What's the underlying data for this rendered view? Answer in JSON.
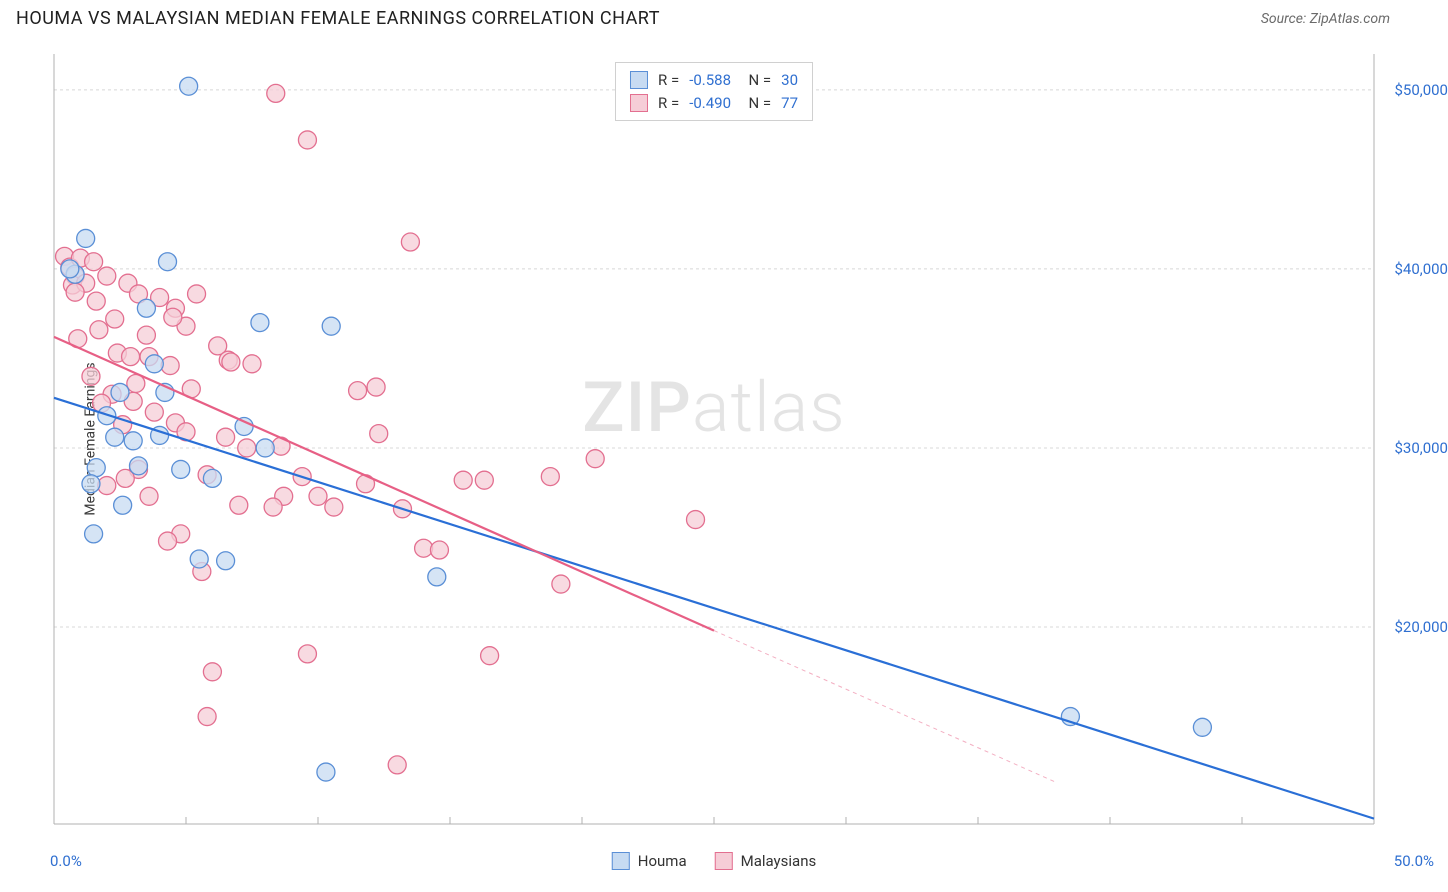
{
  "header": {
    "title": "HOUMA VS MALAYSIAN MEDIAN FEMALE EARNINGS CORRELATION CHART",
    "source": "Source: ZipAtlas.com"
  },
  "chart": {
    "type": "scatter",
    "y_axis_label": "Median Female Earnings",
    "xlim": [
      0,
      50
    ],
    "ylim": [
      9000,
      52000
    ],
    "x_ticks_count": 11,
    "x_tick_labels": {
      "0": "0.0%",
      "50": "50.0%"
    },
    "y_ticks": [
      20000,
      30000,
      40000,
      50000
    ],
    "y_tick_labels": [
      "$20,000",
      "$30,000",
      "$40,000",
      "$50,000"
    ],
    "grid_color": "#d8d8d8",
    "grid_dash": "3,3",
    "axis_color": "#b0b0b0",
    "background_color": "#ffffff",
    "watermark": "ZIPatlas",
    "series": [
      {
        "name": "Houma",
        "marker_fill": "#c7dbf2",
        "marker_stroke": "#5a8fd6",
        "marker_radius": 9,
        "line_color": "#2a6fd6",
        "line_width": 2.2,
        "R": "-0.588",
        "N": "30",
        "trend": {
          "x1": 0,
          "y1": 32800,
          "x2": 50,
          "y2": 9300
        },
        "trend_dash_after_x": 50,
        "points": [
          [
            0.8,
            39700
          ],
          [
            0.6,
            40000
          ],
          [
            1.2,
            41700
          ],
          [
            4.3,
            40400
          ],
          [
            5.1,
            50200
          ],
          [
            2.0,
            31800
          ],
          [
            3.5,
            37800
          ],
          [
            7.8,
            37000
          ],
          [
            2.5,
            33100
          ],
          [
            1.6,
            28900
          ],
          [
            1.4,
            28000
          ],
          [
            3.0,
            30400
          ],
          [
            4.0,
            30700
          ],
          [
            3.2,
            29000
          ],
          [
            4.8,
            28800
          ],
          [
            1.5,
            25200
          ],
          [
            2.6,
            26800
          ],
          [
            5.5,
            23800
          ],
          [
            6.5,
            23700
          ],
          [
            8.0,
            30000
          ],
          [
            7.2,
            31200
          ],
          [
            6.0,
            28300
          ],
          [
            10.5,
            36800
          ],
          [
            14.5,
            22800
          ],
          [
            10.3,
            11900
          ],
          [
            38.5,
            15000
          ],
          [
            43.5,
            14400
          ],
          [
            4.2,
            33100
          ],
          [
            3.8,
            34700
          ],
          [
            2.3,
            30600
          ]
        ]
      },
      {
        "name": "Malaysians",
        "marker_fill": "#f6cdd7",
        "marker_stroke": "#e36f90",
        "marker_radius": 9,
        "line_color": "#e75f85",
        "line_width": 2.2,
        "R": "-0.490",
        "N": "77",
        "trend": {
          "x1": 0,
          "y1": 36200,
          "x2": 25,
          "y2": 19800
        },
        "trend_dash_after_x": 25,
        "trend_dash_end": {
          "x2": 38,
          "y2": 11300
        },
        "points": [
          [
            0.4,
            40700
          ],
          [
            0.6,
            40100
          ],
          [
            0.8,
            39600
          ],
          [
            0.7,
            39100
          ],
          [
            1.0,
            40600
          ],
          [
            1.5,
            40400
          ],
          [
            1.2,
            39200
          ],
          [
            0.8,
            38700
          ],
          [
            1.6,
            38200
          ],
          [
            2.0,
            39600
          ],
          [
            2.8,
            39200
          ],
          [
            3.2,
            38600
          ],
          [
            4.0,
            38400
          ],
          [
            4.6,
            37800
          ],
          [
            5.4,
            38600
          ],
          [
            6.2,
            35700
          ],
          [
            6.6,
            34900
          ],
          [
            6.7,
            34800
          ],
          [
            7.5,
            34700
          ],
          [
            8.4,
            49800
          ],
          [
            9.6,
            47200
          ],
          [
            13.5,
            41500
          ],
          [
            3.5,
            36300
          ],
          [
            2.4,
            35300
          ],
          [
            2.9,
            35100
          ],
          [
            3.6,
            35100
          ],
          [
            4.4,
            34600
          ],
          [
            5.2,
            33300
          ],
          [
            2.2,
            33000
          ],
          [
            1.8,
            32500
          ],
          [
            3.0,
            32600
          ],
          [
            3.8,
            32000
          ],
          [
            4.6,
            31400
          ],
          [
            5.0,
            30900
          ],
          [
            6.5,
            30600
          ],
          [
            7.3,
            30000
          ],
          [
            8.6,
            30100
          ],
          [
            9.4,
            28400
          ],
          [
            10.0,
            27300
          ],
          [
            10.6,
            26700
          ],
          [
            11.5,
            33200
          ],
          [
            12.2,
            33400
          ],
          [
            12.3,
            30800
          ],
          [
            13.2,
            26600
          ],
          [
            14.0,
            24400
          ],
          [
            14.6,
            24300
          ],
          [
            15.5,
            28200
          ],
          [
            16.3,
            28200
          ],
          [
            18.8,
            28400
          ],
          [
            20.5,
            29400
          ],
          [
            24.3,
            26000
          ],
          [
            19.2,
            22400
          ],
          [
            16.5,
            18400
          ],
          [
            9.6,
            18500
          ],
          [
            6.0,
            17500
          ],
          [
            5.6,
            23100
          ],
          [
            4.8,
            25200
          ],
          [
            4.3,
            24800
          ],
          [
            3.6,
            27300
          ],
          [
            3.2,
            28800
          ],
          [
            2.7,
            28300
          ],
          [
            2.0,
            27900
          ],
          [
            5.8,
            15000
          ],
          [
            8.7,
            27300
          ],
          [
            11.8,
            28000
          ],
          [
            13.0,
            12300
          ],
          [
            5.0,
            36800
          ],
          [
            4.5,
            37300
          ],
          [
            2.6,
            31300
          ],
          [
            1.4,
            34000
          ],
          [
            0.9,
            36100
          ],
          [
            1.7,
            36600
          ],
          [
            2.3,
            37200
          ],
          [
            3.1,
            33600
          ],
          [
            5.8,
            28500
          ],
          [
            7.0,
            26800
          ],
          [
            8.3,
            26700
          ]
        ]
      }
    ],
    "legend_bottom": [
      {
        "label": "Houma",
        "fill": "#c7dbf2",
        "stroke": "#5a8fd6"
      },
      {
        "label": "Malaysians",
        "fill": "#f6cdd7",
        "stroke": "#e36f90"
      }
    ]
  }
}
